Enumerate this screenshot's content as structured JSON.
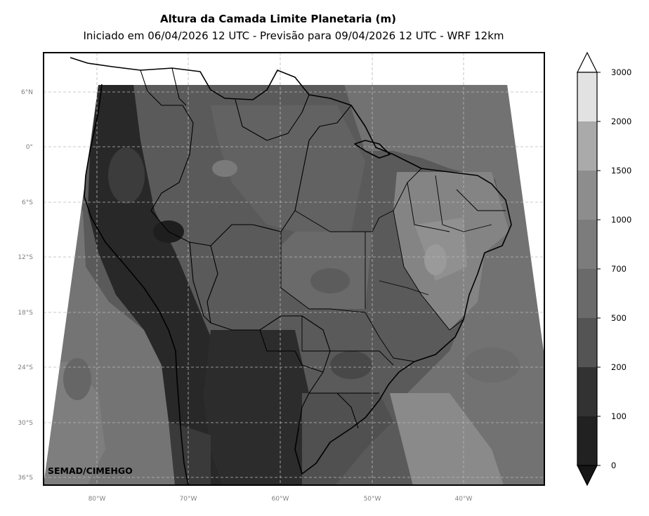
{
  "title": "Altura da Camada Limite Planetaria (m)",
  "subtitle": "Iniciado em 06/04/2026 12 UTC - Previsão para 09/04/2026 12 UTC - WRF 12km",
  "credit": "SEMAD/CIMEHGO",
  "latitude_labels": [
    "6°N",
    "0°",
    "6°S",
    "12°S",
    "18°S",
    "24°S",
    "30°S",
    "36°S"
  ],
  "longitude_labels": [
    "80°W",
    "70°W",
    "60°W",
    "50°W",
    "40°W"
  ],
  "colorbar": {
    "levels": [
      "0",
      "100",
      "200",
      "500",
      "700",
      "1000",
      "1500",
      "2000",
      "3000"
    ],
    "colors": [
      "#212121",
      "#323232",
      "#545454",
      "#6a6a6a",
      "#7c7c7c",
      "#8d8d8d",
      "#aaaaaa",
      "#e2e2e2"
    ],
    "over_color": "#ffffff",
    "under_color": "#161616"
  },
  "gridlines": true
}
